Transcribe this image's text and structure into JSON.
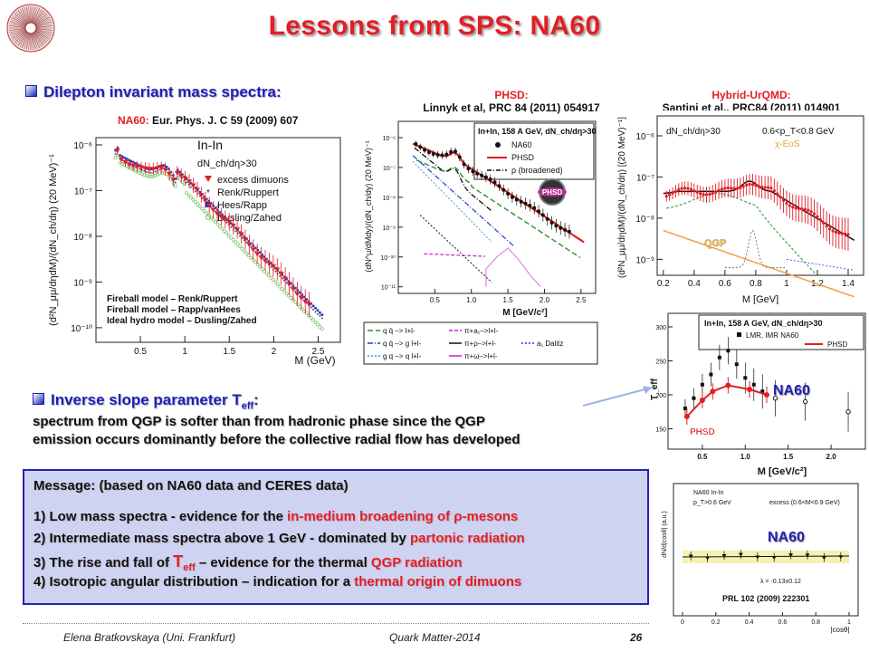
{
  "title": "Lessons from SPS: NA60",
  "section1": {
    "heading": "Dilepton invariant mass spectra:"
  },
  "na60_ref": {
    "prefix": "NA60:",
    "text": "Eur. Phys. J. C 59 (2009) 607"
  },
  "phsd_ref": {
    "line1": "PHSD:",
    "line2": "Linnyk et al, PRC 84 (2011) 054917"
  },
  "hybrid_ref": {
    "line1": "Hybrid-UrQMD:",
    "line2": "Santini et al., PRC84 (2011) 014901"
  },
  "plot1": {
    "system": "In-In",
    "cut": "dN_ch/dη>30",
    "ylabel": "(d²N_μμ/dηdM)/(dN_ch/dη) (20 MeV)⁻¹",
    "xlabel": "M (GeV)",
    "yticks": [
      "10⁻⁶",
      "10⁻⁷",
      "10⁻⁸",
      "10⁻⁹",
      "10⁻¹⁰"
    ],
    "xticks": [
      "0.5",
      "1",
      "1.5",
      "2",
      "2.5"
    ],
    "legend": [
      "excess dimuons",
      "Renk/Ruppert",
      "Hees/Rapp",
      "Dusling/Zahed"
    ],
    "models": [
      "Fireball model – Renk/Ruppert",
      "Fireball model – Rapp/vanHees",
      "Ideal hydro model – Dusling/Zahed"
    ],
    "colors": {
      "data": "#e31e24",
      "renk": "#111111",
      "hees": "#1d3fcf",
      "dusling": "#7bbf6a"
    }
  },
  "plot2": {
    "header": "In+In, 158 A GeV, dN_ch/dη>30",
    "legend": [
      "NA60",
      "PHSD",
      "ρ (broadened)"
    ],
    "ylabel": "(dN^μ/dMdy)/(dN_ch/dy) (20 MeV)⁻¹",
    "xlabel": "M  [GeV/c²]",
    "yticks": [
      "10⁻⁶",
      "10⁻⁷",
      "10⁻⁸",
      "10⁻⁹",
      "10⁻¹⁰",
      "10⁻¹¹"
    ],
    "xticks": [
      "0.5",
      "1.0",
      "1.5",
      "2.0",
      "2.5"
    ],
    "channels": [
      "q q̄ –> l+l-",
      "q q̄ –> g l+l-",
      "g q –> q l+l-",
      "π+a₁–>l+l-",
      "π+ρ–>l+l-",
      "π+ω–>l+l-",
      "a₁ Dalitz"
    ],
    "badge": "PHSD"
  },
  "plot3": {
    "cut": "dN_ch/dη>30",
    "pt": "0.6<p_T<0.8 GeV",
    "eos": "χ-EoS",
    "qgp": "QGP",
    "ylabel": "(d²N_μμ/dηdM)/(dN_ch/dη) [(20 MeV)⁻¹]",
    "xlabel": "M [GeV]",
    "yticks": [
      "10⁻⁶",
      "10⁻⁷",
      "10⁻⁸",
      "10⁻⁹"
    ],
    "xticks": [
      "0.2",
      "0.4",
      "0.6",
      "0.8",
      "1",
      "1.2",
      "1.4"
    ]
  },
  "plot4": {
    "header": "In+In, 158 A GeV, dN_ch/dη>30",
    "legend_top": "LMR,   IMR NA60",
    "legend_phsd": "PHSD",
    "ylabel": "T_eff",
    "xlabel": "M  [GeV/c²]",
    "yticks": [
      "300",
      "250",
      "200",
      "150"
    ],
    "xticks": [
      "0.5",
      "1.0",
      "1.5",
      "2.0"
    ],
    "na60_label": "NA60",
    "phsd_label": "PHSD"
  },
  "plot5": {
    "lines": [
      "NA60 In-In",
      "p_T>0.6 GeV",
      "excess (0.6<M<0.9 GeV)"
    ],
    "lambda": "λ = -0.13±0.12",
    "ylabel": "dN/d|cosθ| (a.u.)",
    "xlabel": "|cosθ|",
    "xticks": [
      "0",
      "0.2",
      "0.4",
      "0.6",
      "0.8",
      "1"
    ],
    "na60_label": "NA60",
    "ref": "PRL 102 (2009) 222301"
  },
  "section2": {
    "heading": "Inverse slope parameter T",
    "heading_sub": "eff",
    "heading_tail": ":",
    "line1": "spectrum from QGP is softer than from hadronic phase since the QGP",
    "line2": "emission occurs dominantly before the collective radial flow has developed"
  },
  "message": {
    "title": "Message: (based on NA60 data and CERES data)",
    "items": [
      {
        "num": "1)",
        "a": "Low mass spectra",
        "b": " - evidence for the ",
        "c": "in-medium broadening of ρ-mesons",
        "d": ""
      },
      {
        "num": "2)",
        "a": "Intermediate mass ",
        "b": "spectra above 1 GeV",
        "c": " - dominated by ",
        "d": "partonic radiation"
      },
      {
        "num": "3)",
        "a": "The rise and fall of ",
        "b": "T",
        "sub": "eff",
        "c": " – evidence for the thermal ",
        "d": "QGP radiation"
      },
      {
        "num": "4)",
        "a": "Isotropic angular distribution",
        "b": " – indication for a ",
        "c": "thermal origin of dimuons",
        "d": ""
      }
    ]
  },
  "footer": {
    "author": "Elena Bratkovskaya  (Uni. Frankfurt)",
    "conference": "Quark Matter-2014",
    "page": "26"
  }
}
